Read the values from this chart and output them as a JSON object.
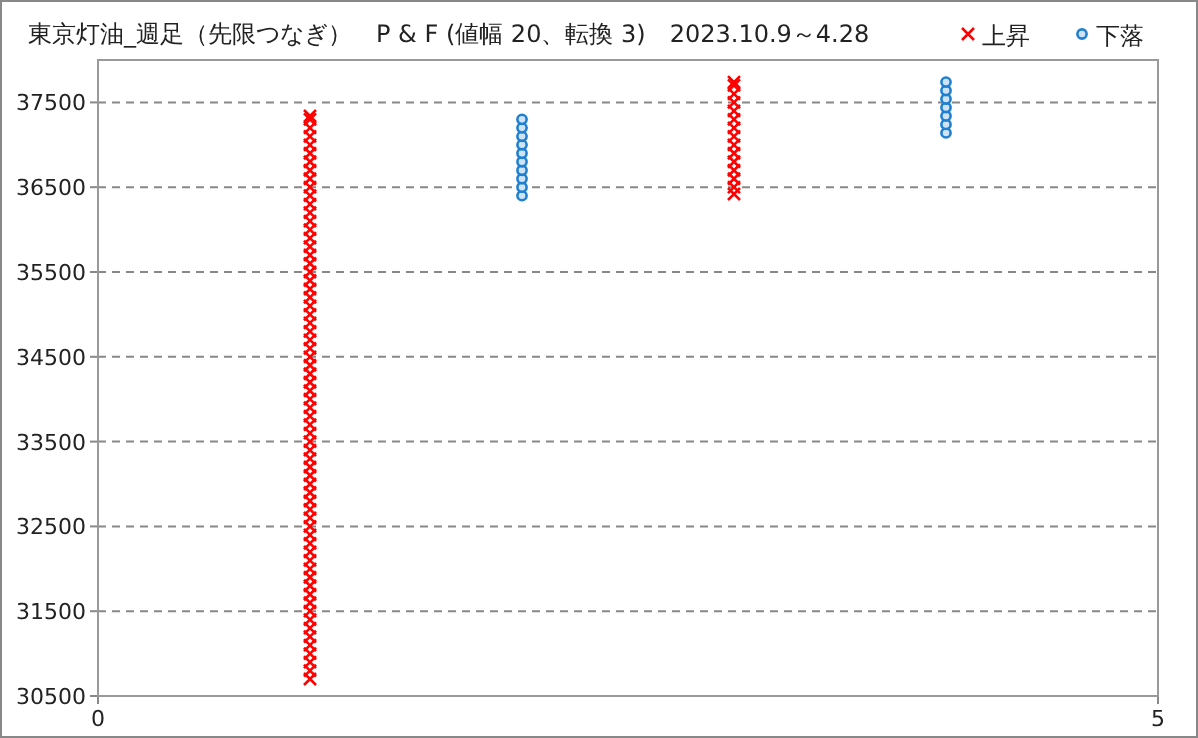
{
  "chart_data": {
    "type": "scatter",
    "title": "東京灯油_週足（先限つなぎ）　P & F (値幅 20、転換 3)　2023.10.9～4.28",
    "xlim": [
      0,
      5
    ],
    "xticks": [
      0,
      5
    ],
    "ylim": [
      30500,
      38000
    ],
    "yticks": [
      30500,
      31500,
      32500,
      33500,
      34500,
      35500,
      36500,
      37500
    ],
    "grid": "y",
    "legend": "top right",
    "series": [
      {
        "name": "上昇",
        "color": "#ff0000",
        "marker": "cross",
        "x": [
          1,
          1,
          1,
          1,
          1,
          1,
          1,
          1,
          1,
          1,
          1,
          1,
          1,
          1,
          1,
          1,
          1,
          1,
          1,
          1,
          1,
          1,
          1,
          1,
          1,
          1,
          1,
          1,
          1,
          1,
          1,
          1,
          1,
          1,
          1,
          1,
          1,
          1,
          1,
          1,
          1,
          1,
          1,
          1,
          1,
          1,
          1,
          1,
          1,
          1,
          1,
          1,
          1,
          1,
          1,
          1,
          1,
          1,
          1,
          1,
          1,
          1,
          1,
          1,
          1,
          1,
          1,
          1,
          3,
          3,
          3,
          3,
          3,
          3,
          3,
          3,
          3,
          3,
          3,
          3,
          3,
          3,
          3
        ],
        "values": [
          30700,
          30800,
          30900,
          31000,
          31100,
          31200,
          31300,
          31400,
          31500,
          31600,
          31700,
          31800,
          31900,
          32000,
          32100,
          32200,
          32300,
          32400,
          32500,
          32600,
          32700,
          32800,
          32900,
          33000,
          33100,
          33200,
          33300,
          33400,
          33500,
          33600,
          33700,
          33800,
          33900,
          34000,
          34100,
          34200,
          34300,
          34400,
          34500,
          34600,
          34700,
          34800,
          34900,
          35000,
          35100,
          35200,
          35300,
          35400,
          35500,
          35600,
          35700,
          35800,
          35900,
          36000,
          36100,
          36200,
          36300,
          36400,
          36500,
          36600,
          36700,
          36800,
          36900,
          37000,
          37100,
          37200,
          37300,
          37340,
          36420,
          36500,
          36600,
          36700,
          36800,
          36900,
          37000,
          37100,
          37200,
          37300,
          37400,
          37500,
          37600,
          37700,
          37740
        ]
      },
      {
        "name": "下落",
        "color": "#1f7fd0",
        "marker": "circle",
        "x": [
          2,
          2,
          2,
          2,
          2,
          2,
          2,
          2,
          2,
          2,
          4,
          4,
          4,
          4,
          4,
          4,
          4
        ],
        "values": [
          36400,
          36500,
          36600,
          36700,
          36800,
          36900,
          37000,
          37100,
          37200,
          37300,
          37140,
          37240,
          37340,
          37440,
          37540,
          37640,
          37740
        ]
      }
    ]
  }
}
